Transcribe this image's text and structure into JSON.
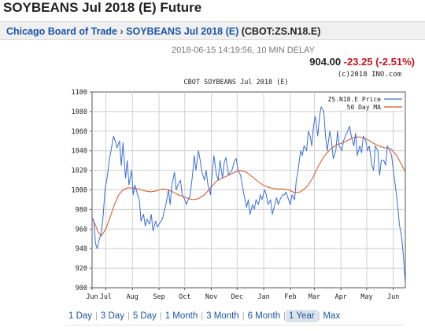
{
  "page": {
    "title": "SOYBEANS Jul 2018 (E) Future"
  },
  "breadcrumb": {
    "exchange": "Chicago Board of Trade",
    "separator": "›",
    "contract": "SOYBEANS Jul 2018 (E)",
    "symbol": "(CBOT:ZS.N18.E)"
  },
  "quote": {
    "timestamp": "2018-06-15 14:19:56, 10 MIN DELAY",
    "price": "904.00",
    "change": "-23.25 (-2.51%)",
    "copyright": "(c)2018 INO.com",
    "colors": {
      "price": "#222222",
      "change": "#c0141b"
    }
  },
  "ranges": {
    "items": [
      "1 Day",
      "3 Day",
      "5 Day",
      "1 Month",
      "3 Month",
      "6 Month",
      "1 Year",
      "Max"
    ],
    "active": "1 Year"
  },
  "chart_data": {
    "type": "line",
    "title": "CBOT SOYBEANS Jul 2018 (E)",
    "xlabel": "",
    "ylabel": "",
    "ylim": [
      900,
      1100
    ],
    "yticks": [
      900,
      920,
      940,
      960,
      980,
      1000,
      1020,
      1040,
      1060,
      1080,
      1100
    ],
    "xlim": [
      "2017-06-15",
      "2018-06-15"
    ],
    "xticks": [
      {
        "label": "Jun",
        "date": "2017-06-15"
      },
      {
        "label": "Jul",
        "date": "2017-07-01"
      },
      {
        "label": "Aug",
        "date": "2017-08-01"
      },
      {
        "label": "Sep",
        "date": "2017-09-01"
      },
      {
        "label": "Oct",
        "date": "2017-10-01"
      },
      {
        "label": "Nov",
        "date": "2017-11-01"
      },
      {
        "label": "Dec",
        "date": "2017-12-01"
      },
      {
        "label": "Jan",
        "date": "2018-01-01"
      },
      {
        "label": "Feb",
        "date": "2018-02-01"
      },
      {
        "label": "Mar",
        "date": "2018-03-01"
      },
      {
        "label": "Apr",
        "date": "2018-04-01"
      },
      {
        "label": "May",
        "date": "2018-05-01"
      },
      {
        "label": "Jun",
        "date": "2018-06-01"
      }
    ],
    "grid": true,
    "legend": "top-right",
    "series": [
      {
        "name": "ZS.N18.E Price",
        "color": "#3a6fd8",
        "points": [
          [
            "2017-06-15",
            970
          ],
          [
            "2017-06-17",
            968
          ],
          [
            "2017-06-19",
            945
          ],
          [
            "2017-06-21",
            940
          ],
          [
            "2017-06-23",
            948
          ],
          [
            "2017-06-26",
            958
          ],
          [
            "2017-06-28",
            975
          ],
          [
            "2017-06-30",
            1000
          ],
          [
            "2017-07-03",
            1015
          ],
          [
            "2017-07-05",
            1030
          ],
          [
            "2017-07-07",
            1040
          ],
          [
            "2017-07-10",
            1055
          ],
          [
            "2017-07-12",
            1050
          ],
          [
            "2017-07-14",
            1043
          ],
          [
            "2017-07-17",
            1050
          ],
          [
            "2017-07-19",
            1025
          ],
          [
            "2017-07-21",
            1048
          ],
          [
            "2017-07-24",
            1012
          ],
          [
            "2017-07-26",
            1030
          ],
          [
            "2017-07-28",
            1005
          ],
          [
            "2017-07-31",
            1020
          ],
          [
            "2017-08-02",
            995
          ],
          [
            "2017-08-04",
            1005
          ],
          [
            "2017-08-07",
            995
          ],
          [
            "2017-08-09",
            990
          ],
          [
            "2017-08-11",
            968
          ],
          [
            "2017-08-14",
            975
          ],
          [
            "2017-08-16",
            963
          ],
          [
            "2017-08-18",
            970
          ],
          [
            "2017-08-21",
            965
          ],
          [
            "2017-08-23",
            975
          ],
          [
            "2017-08-25",
            958
          ],
          [
            "2017-08-28",
            968
          ],
          [
            "2017-08-30",
            962
          ],
          [
            "2017-09-01",
            965
          ],
          [
            "2017-09-05",
            970
          ],
          [
            "2017-09-07",
            978
          ],
          [
            "2017-09-09",
            985
          ],
          [
            "2017-09-12",
            1000
          ],
          [
            "2017-09-14",
            985
          ],
          [
            "2017-09-16",
            1005
          ],
          [
            "2017-09-19",
            1018
          ],
          [
            "2017-09-21",
            1000
          ],
          [
            "2017-09-23",
            1005
          ],
          [
            "2017-09-26",
            1010
          ],
          [
            "2017-09-28",
            995
          ],
          [
            "2017-10-01",
            990
          ],
          [
            "2017-10-03",
            985
          ],
          [
            "2017-10-05",
            990
          ],
          [
            "2017-10-07",
            993
          ],
          [
            "2017-10-10",
            1015
          ],
          [
            "2017-10-12",
            1035
          ],
          [
            "2017-10-14",
            1020
          ],
          [
            "2017-10-17",
            1040
          ],
          [
            "2017-10-19",
            1030
          ],
          [
            "2017-10-21",
            1018
          ],
          [
            "2017-10-24",
            1010
          ],
          [
            "2017-10-26",
            1020
          ],
          [
            "2017-10-28",
            1005
          ],
          [
            "2017-10-31",
            995
          ],
          [
            "2017-11-02",
            1018
          ],
          [
            "2017-11-04",
            1035
          ],
          [
            "2017-11-07",
            1015
          ],
          [
            "2017-11-09",
            1010
          ],
          [
            "2017-11-11",
            1030
          ],
          [
            "2017-11-14",
            1012
          ],
          [
            "2017-11-16",
            1028
          ],
          [
            "2017-11-18",
            1033
          ],
          [
            "2017-11-21",
            1015
          ],
          [
            "2017-11-23",
            1018
          ],
          [
            "2017-11-25",
            1020
          ],
          [
            "2017-11-28",
            1030
          ],
          [
            "2017-11-30",
            1032
          ],
          [
            "2017-12-02",
            1020
          ],
          [
            "2017-12-05",
            1015
          ],
          [
            "2017-12-07",
            1005
          ],
          [
            "2017-12-09",
            995
          ],
          [
            "2017-12-12",
            982
          ],
          [
            "2017-12-14",
            990
          ],
          [
            "2017-12-16",
            975
          ],
          [
            "2017-12-19",
            985
          ],
          [
            "2017-12-21",
            980
          ],
          [
            "2017-12-23",
            990
          ],
          [
            "2017-12-26",
            985
          ],
          [
            "2017-12-28",
            995
          ],
          [
            "2017-12-30",
            990
          ],
          [
            "2018-01-02",
            1000
          ],
          [
            "2018-01-04",
            995
          ],
          [
            "2018-01-06",
            985
          ],
          [
            "2018-01-09",
            990
          ],
          [
            "2018-01-11",
            975
          ],
          [
            "2018-01-13",
            982
          ],
          [
            "2018-01-16",
            992
          ],
          [
            "2018-01-18",
            985
          ],
          [
            "2018-01-20",
            990
          ],
          [
            "2018-01-23",
            995
          ],
          [
            "2018-01-25",
            995
          ],
          [
            "2018-01-27",
            998
          ],
          [
            "2018-01-30",
            990
          ],
          [
            "2018-02-01",
            985
          ],
          [
            "2018-02-03",
            995
          ],
          [
            "2018-02-06",
            990
          ],
          [
            "2018-02-08",
            1010
          ],
          [
            "2018-02-10",
            1020
          ],
          [
            "2018-02-13",
            1040
          ],
          [
            "2018-02-15",
            1035
          ],
          [
            "2018-02-17",
            1045
          ],
          [
            "2018-02-20",
            1040
          ],
          [
            "2018-02-22",
            1060
          ],
          [
            "2018-02-24",
            1055
          ],
          [
            "2018-02-26",
            1045
          ],
          [
            "2018-02-28",
            1065
          ],
          [
            "2018-03-02",
            1075
          ],
          [
            "2018-03-05",
            1055
          ],
          [
            "2018-03-07",
            1075
          ],
          [
            "2018-03-09",
            1085
          ],
          [
            "2018-03-12",
            1080
          ],
          [
            "2018-03-14",
            1055
          ],
          [
            "2018-03-16",
            1040
          ],
          [
            "2018-03-19",
            1060
          ],
          [
            "2018-03-21",
            1050
          ],
          [
            "2018-03-23",
            1032
          ],
          [
            "2018-03-26",
            1040
          ],
          [
            "2018-03-28",
            1060
          ],
          [
            "2018-03-30",
            1045
          ],
          [
            "2018-04-02",
            1040
          ],
          [
            "2018-04-04",
            1050
          ],
          [
            "2018-04-06",
            1055
          ],
          [
            "2018-04-09",
            1060
          ],
          [
            "2018-04-11",
            1065
          ],
          [
            "2018-04-13",
            1055
          ],
          [
            "2018-04-16",
            1045
          ],
          [
            "2018-04-18",
            1058
          ],
          [
            "2018-04-20",
            1035
          ],
          [
            "2018-04-23",
            1045
          ],
          [
            "2018-04-25",
            1038
          ],
          [
            "2018-04-27",
            1055
          ],
          [
            "2018-04-30",
            1050
          ],
          [
            "2018-05-02",
            1040
          ],
          [
            "2018-05-04",
            1045
          ],
          [
            "2018-05-07",
            1025
          ],
          [
            "2018-05-09",
            1020
          ],
          [
            "2018-05-11",
            1045
          ],
          [
            "2018-05-14",
            1040
          ],
          [
            "2018-05-16",
            1015
          ],
          [
            "2018-05-18",
            1030
          ],
          [
            "2018-05-21",
            1030
          ],
          [
            "2018-05-23",
            1025
          ],
          [
            "2018-05-25",
            1045
          ],
          [
            "2018-05-28",
            1040
          ],
          [
            "2018-05-30",
            1035
          ],
          [
            "2018-06-01",
            1020
          ],
          [
            "2018-06-04",
            1000
          ],
          [
            "2018-06-06",
            985
          ],
          [
            "2018-06-08",
            965
          ],
          [
            "2018-06-11",
            950
          ],
          [
            "2018-06-13",
            930
          ],
          [
            "2018-06-15",
            904
          ]
        ]
      },
      {
        "name": "50 Day MA",
        "color": "#d8541e",
        "points": [
          [
            "2017-06-15",
            972
          ],
          [
            "2017-06-18",
            966
          ],
          [
            "2017-06-22",
            957
          ],
          [
            "2017-06-26",
            953
          ],
          [
            "2017-07-01",
            960
          ],
          [
            "2017-07-06",
            972
          ],
          [
            "2017-07-11",
            985
          ],
          [
            "2017-07-16",
            995
          ],
          [
            "2017-07-21",
            1000
          ],
          [
            "2017-07-26",
            1002
          ],
          [
            "2017-08-01",
            1002
          ],
          [
            "2017-08-08",
            1001
          ],
          [
            "2017-08-15",
            999
          ],
          [
            "2017-08-22",
            998
          ],
          [
            "2017-08-29",
            999
          ],
          [
            "2017-09-05",
            1001
          ],
          [
            "2017-09-12",
            1000
          ],
          [
            "2017-09-19",
            997
          ],
          [
            "2017-09-26",
            994
          ],
          [
            "2017-10-03",
            992
          ],
          [
            "2017-10-10",
            990
          ],
          [
            "2017-10-17",
            991
          ],
          [
            "2017-10-24",
            995
          ],
          [
            "2017-10-31",
            1002
          ],
          [
            "2017-11-07",
            1009
          ],
          [
            "2017-11-14",
            1012
          ],
          [
            "2017-11-21",
            1015
          ],
          [
            "2017-11-28",
            1018
          ],
          [
            "2017-12-05",
            1020
          ],
          [
            "2017-12-12",
            1018
          ],
          [
            "2017-12-19",
            1013
          ],
          [
            "2017-12-26",
            1008
          ],
          [
            "2018-01-02",
            1004
          ],
          [
            "2018-01-09",
            1002
          ],
          [
            "2018-01-16",
            1001
          ],
          [
            "2018-01-23",
            1001
          ],
          [
            "2018-01-30",
            1000
          ],
          [
            "2018-02-06",
            997
          ],
          [
            "2018-02-13",
            998
          ],
          [
            "2018-02-20",
            1003
          ],
          [
            "2018-02-27",
            1012
          ],
          [
            "2018-03-06",
            1025
          ],
          [
            "2018-03-13",
            1035
          ],
          [
            "2018-03-20",
            1042
          ],
          [
            "2018-03-27",
            1046
          ],
          [
            "2018-04-03",
            1048
          ],
          [
            "2018-04-10",
            1051
          ],
          [
            "2018-04-17",
            1054
          ],
          [
            "2018-04-24",
            1054
          ],
          [
            "2018-05-01",
            1052
          ],
          [
            "2018-05-08",
            1048
          ],
          [
            "2018-05-15",
            1045
          ],
          [
            "2018-05-22",
            1043
          ],
          [
            "2018-05-29",
            1042
          ],
          [
            "2018-06-05",
            1035
          ],
          [
            "2018-06-10",
            1027
          ],
          [
            "2018-06-15",
            1018
          ]
        ]
      }
    ]
  }
}
